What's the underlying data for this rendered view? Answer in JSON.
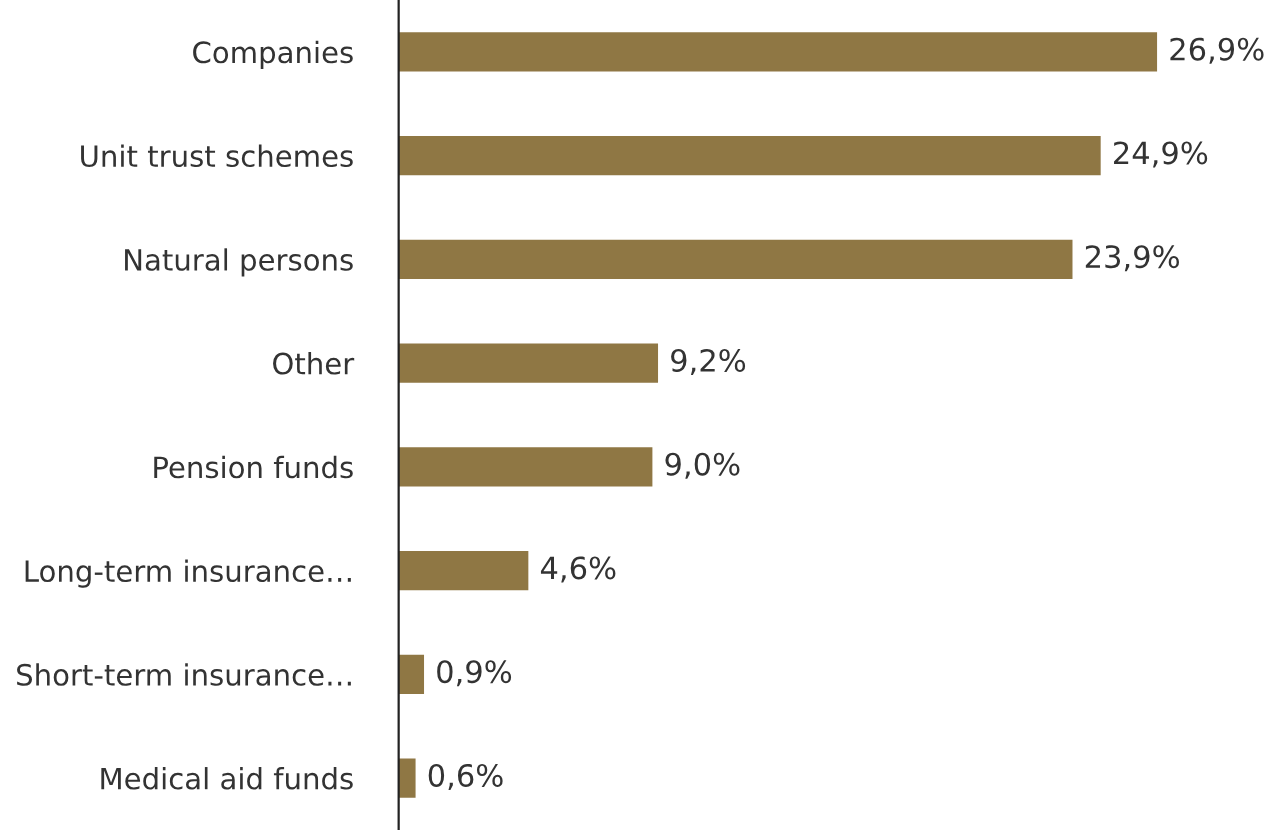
{
  "chart_data": {
    "type": "bar",
    "orientation": "horizontal",
    "categories": [
      "Companies",
      "Unit trust schemes",
      "Natural persons",
      "Other",
      "Pension funds",
      "Long-term insurance…",
      "Short-term insurance…",
      "Medical aid funds"
    ],
    "values": [
      26.9,
      24.9,
      23.9,
      9.2,
      9.0,
      4.6,
      0.9,
      0.6
    ],
    "value_labels": [
      "26,9%",
      "24,9%",
      "23,9%",
      "9,2%",
      "9,0%",
      "4,6%",
      "0,9%",
      "0,6%"
    ],
    "color": "#8f7744",
    "grid": false,
    "legend": false
  }
}
